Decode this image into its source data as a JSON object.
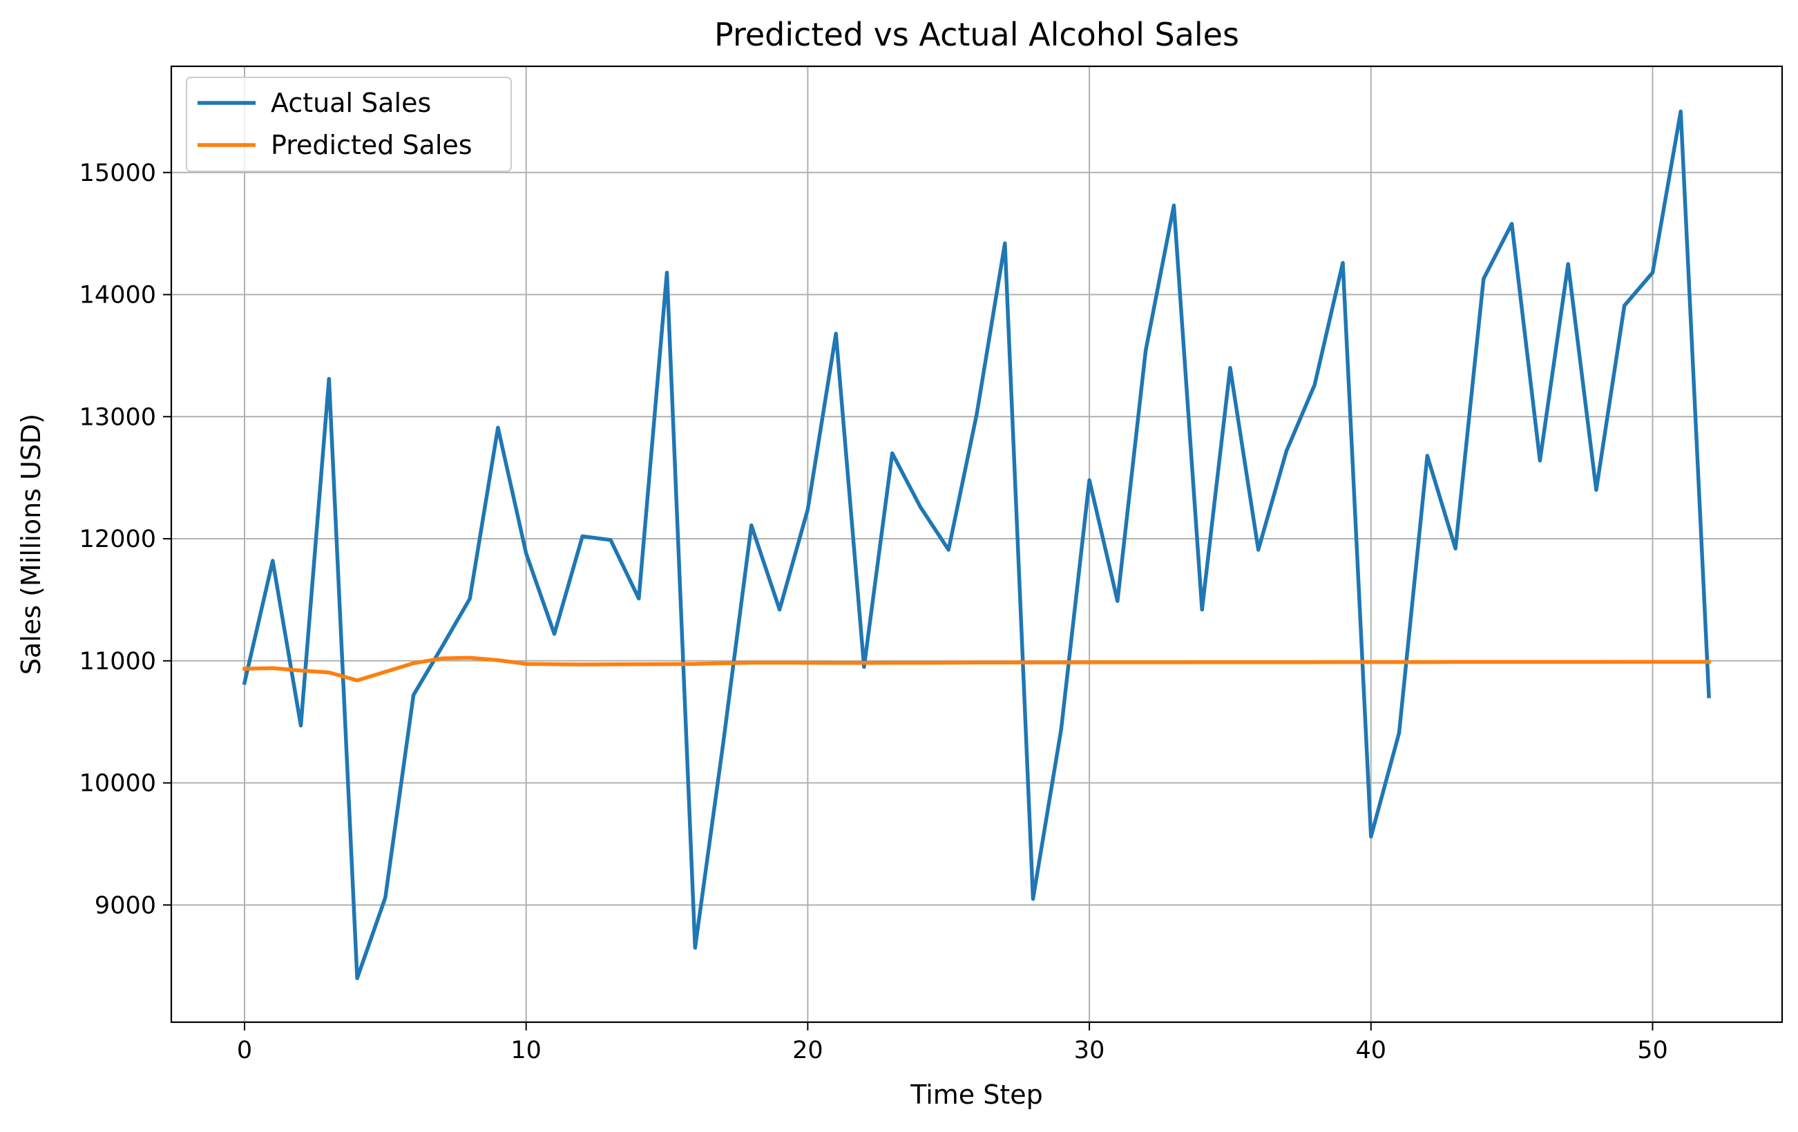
{
  "chart_data": {
    "type": "line",
    "title": "Predicted vs Actual Alcohol Sales",
    "xlabel": "Time Step",
    "ylabel": "Sales (Millions USD)",
    "xlim": [
      -2.6,
      54.6
    ],
    "ylim": [
      8040,
      15870
    ],
    "xticks": [
      0,
      10,
      20,
      30,
      40,
      50
    ],
    "yticks": [
      9000,
      10000,
      11000,
      12000,
      13000,
      14000,
      15000
    ],
    "grid": true,
    "legend_position": "top-left",
    "x": [
      0,
      1,
      2,
      3,
      4,
      5,
      6,
      7,
      8,
      9,
      10,
      11,
      12,
      13,
      14,
      15,
      16,
      17,
      18,
      19,
      20,
      21,
      22,
      23,
      24,
      25,
      26,
      27,
      28,
      29,
      30,
      31,
      32,
      33,
      34,
      35,
      36,
      37,
      38,
      39,
      40,
      41,
      42,
      43,
      44,
      45,
      46,
      47,
      48,
      49,
      50,
      51,
      52
    ],
    "series": [
      {
        "name": "Actual Sales",
        "color": "#1f77b4",
        "values": [
          10820,
          11820,
          10470,
          13310,
          8400,
          9060,
          10720,
          11110,
          11510,
          12910,
          11880,
          11220,
          12020,
          11990,
          11510,
          14180,
          8650,
          10330,
          12110,
          11420,
          12240,
          13680,
          10950,
          12700,
          12260,
          11910,
          13020,
          14420,
          9050,
          10440,
          12480,
          11490,
          13540,
          14730,
          11420,
          13400,
          11910,
          12720,
          13260,
          14260,
          9560,
          10410,
          12680,
          11920,
          14130,
          14580,
          12640,
          14250,
          12400,
          13910,
          14180,
          15500,
          10710
        ]
      },
      {
        "name": "Predicted Sales",
        "color": "#ff7f0e",
        "values": [
          10935,
          10940,
          10920,
          10905,
          10840,
          10910,
          10980,
          11020,
          11025,
          11005,
          10975,
          10972,
          10970,
          10971,
          10972,
          10973,
          10975,
          10980,
          10985,
          10985,
          10984,
          10983,
          10983,
          10984,
          10984,
          10985,
          10986,
          10986,
          10987,
          10987,
          10988,
          10988,
          10988,
          10988,
          10989,
          10989,
          10989,
          10989,
          10989,
          10990,
          10990,
          10990,
          10990,
          10991,
          10991,
          10991,
          10991,
          10991,
          10991,
          10992,
          10992,
          10992,
          10992
        ]
      }
    ]
  }
}
